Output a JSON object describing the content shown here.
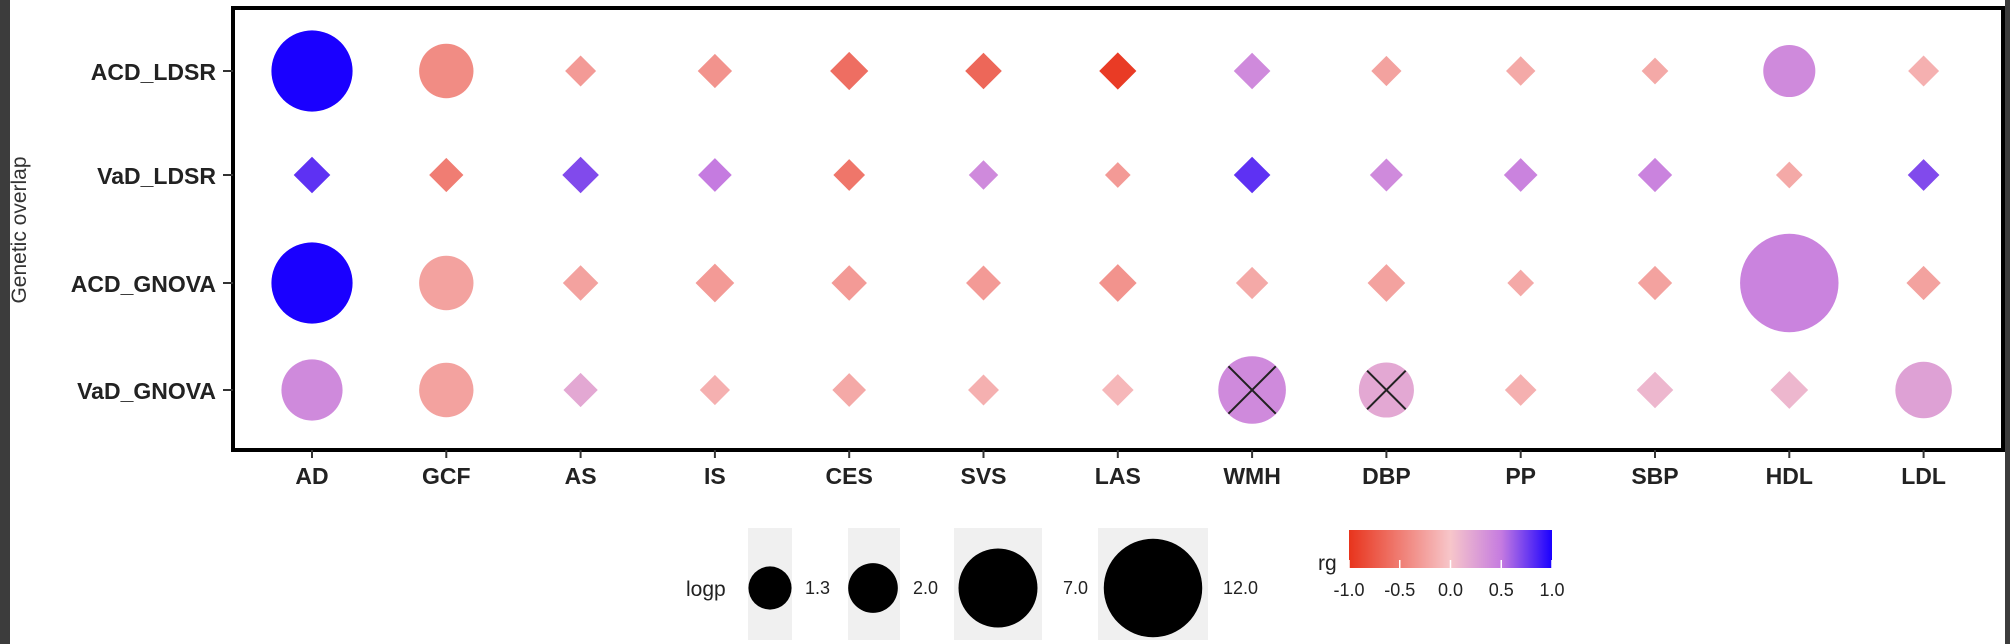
{
  "chart_data": {
    "type": "bubble-matrix",
    "ylabel": "Genetic overlap",
    "rows": [
      "ACD_LDSR",
      "VaD_LDSR",
      "ACD_GNOVA",
      "VaD_GNOVA"
    ],
    "columns": [
      "AD",
      "GCF",
      "AS",
      "IS",
      "CES",
      "SVS",
      "LAS",
      "WMH",
      "DBP",
      "PP",
      "SBP",
      "HDL",
      "LDL"
    ],
    "significance_rule": "circle if logp >= 1.3 (P<0.05), diamond otherwise; X marks a crossed-out cell",
    "cells": [
      [
        {
          "logp": 7.5,
          "rg": 1.0
        },
        {
          "logp": 2.6,
          "rg": -0.4
        },
        {
          "logp": 0.55,
          "rg": -0.3
        },
        {
          "logp": 0.8,
          "rg": -0.35
        },
        {
          "logp": 1.15,
          "rg": -0.6
        },
        {
          "logp": 1.0,
          "rg": -0.65
        },
        {
          "logp": 1.05,
          "rg": -0.95
        },
        {
          "logp": 1.0,
          "rg": 0.4
        },
        {
          "logp": 0.5,
          "rg": -0.25
        },
        {
          "logp": 0.45,
          "rg": -0.2
        },
        {
          "logp": 0.3,
          "rg": -0.2
        },
        {
          "logp": 2.3,
          "rg": 0.4
        },
        {
          "logp": 0.55,
          "rg": -0.15
        }
      ],
      [
        {
          "logp": 1.0,
          "rg": 0.8
        },
        {
          "logp": 0.8,
          "rg": -0.5
        },
        {
          "logp": 1.0,
          "rg": 0.7
        },
        {
          "logp": 0.75,
          "rg": 0.5
        },
        {
          "logp": 0.6,
          "rg": -0.55
        },
        {
          "logp": 0.45,
          "rg": 0.4
        },
        {
          "logp": 0.25,
          "rg": -0.3
        },
        {
          "logp": 1.0,
          "rg": 0.8
        },
        {
          "logp": 0.7,
          "rg": 0.4
        },
        {
          "logp": 0.75,
          "rg": 0.45
        },
        {
          "logp": 0.8,
          "rg": 0.45
        },
        {
          "logp": 0.3,
          "rg": -0.2
        },
        {
          "logp": 0.6,
          "rg": 0.7
        }
      ],
      [
        {
          "logp": 7.5,
          "rg": 1.0
        },
        {
          "logp": 2.6,
          "rg": -0.25
        },
        {
          "logp": 0.9,
          "rg": -0.25
        },
        {
          "logp": 1.2,
          "rg": -0.3
        },
        {
          "logp": 0.9,
          "rg": -0.3
        },
        {
          "logp": 0.85,
          "rg": -0.3
        },
        {
          "logp": 1.1,
          "rg": -0.35
        },
        {
          "logp": 0.65,
          "rg": -0.2
        },
        {
          "logp": 1.1,
          "rg": -0.25
        },
        {
          "logp": 0.3,
          "rg": -0.2
        },
        {
          "logp": 0.8,
          "rg": -0.25
        },
        {
          "logp": 12.0,
          "rg": 0.45
        },
        {
          "logp": 0.8,
          "rg": -0.25
        }
      ],
      [
        {
          "logp": 3.6,
          "rg": 0.4
        },
        {
          "logp": 2.6,
          "rg": -0.25
        },
        {
          "logp": 0.8,
          "rg": 0.2
        },
        {
          "logp": 0.5,
          "rg": -0.15
        },
        {
          "logp": 0.75,
          "rg": -0.2
        },
        {
          "logp": 0.55,
          "rg": -0.15
        },
        {
          "logp": 0.6,
          "rg": -0.1
        },
        {
          "logp": 4.7,
          "rg": 0.4,
          "crossed": true
        },
        {
          "logp": 2.7,
          "rg": 0.2,
          "crossed": true
        },
        {
          "logp": 0.6,
          "rg": -0.15
        },
        {
          "logp": 1.0,
          "rg": 0.1
        },
        {
          "logp": 1.1,
          "rg": 0.1
        },
        {
          "logp": 2.9,
          "rg": 0.25
        }
      ]
    ],
    "size_legend": {
      "title": "logp",
      "breaks": [
        1.3,
        2.0,
        7.0,
        12.0
      ],
      "labels": [
        "1.3",
        "2.0",
        "7.0",
        "12.0"
      ]
    },
    "color_legend": {
      "title": "rg",
      "range": [
        -1.0,
        1.0
      ],
      "breaks": [
        -1.0,
        -0.5,
        0.0,
        0.5,
        1.0
      ],
      "labels": [
        "-1.0",
        "-0.5",
        "0.0",
        "0.5",
        "1.0"
      ],
      "colors": {
        "low": "#e8341c",
        "mid": "#f7c6ca",
        "high_mid": "#c57be0",
        "high": "#1a00ff"
      }
    }
  }
}
